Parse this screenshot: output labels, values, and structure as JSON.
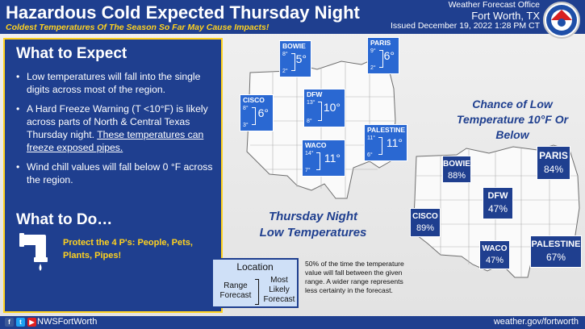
{
  "header": {
    "title": "Hazardous Cold Expected Thursday Night",
    "subtitle": "Coldest Temperatures Of The Season So Far May Cause Impacts!",
    "office_line1": "Weather Forecast Office",
    "office_line2": "Fort Worth, TX",
    "issued": "Issued December 19, 2022 1:28 PM CT"
  },
  "expect": {
    "heading": "What to Expect",
    "bullet1": "Low temperatures will fall into the single digits across most of the region.",
    "bullet2_text": "A Hard Freeze Warning (T <10°F) is likely across parts of North & Central Texas Thursday night.",
    "bullet2_underlined": "These temperatures can freeze exposed pipes.",
    "bullet3": "Wind chill values will fall below 0 °F across the region."
  },
  "todo": {
    "heading": "What to Do…",
    "protect": "Protect the 4 P's: People, Pets, Plants, Pipes!"
  },
  "low_temps": {
    "caption": "Thursday Night Low Temperatures",
    "sites": [
      {
        "name": "BOWIE",
        "high": "8°",
        "low": "2°",
        "value": "5°"
      },
      {
        "name": "PARIS",
        "high": "9°",
        "low": "2°",
        "value": "6°"
      },
      {
        "name": "CISCO",
        "high": "8°",
        "low": "3°",
        "value": "6°"
      },
      {
        "name": "DFW",
        "high": "13°",
        "low": "8°",
        "value": "10°"
      },
      {
        "name": "PALESTINE",
        "high": "11°",
        "low": "6°",
        "value": "11°"
      },
      {
        "name": "WACO",
        "high": "14°",
        "low": "7°",
        "value": "11°"
      }
    ]
  },
  "chance": {
    "caption": "Chance of Low Temperature 10°F Or Below",
    "sites": [
      {
        "name": "BOWIE",
        "value": "88%"
      },
      {
        "name": "PARIS",
        "value": "84%"
      },
      {
        "name": "DFW",
        "value": "47%"
      },
      {
        "name": "CISCO",
        "value": "89%"
      },
      {
        "name": "WACO",
        "value": "47%"
      },
      {
        "name": "PALESTINE",
        "value": "67%"
      }
    ]
  },
  "legend": {
    "title": "Location",
    "range": "Range Forecast",
    "most_likely": "Most Likely Forecast",
    "note": "50% of the time the temperature value will fall between the given range. A wider range represents less certainty in the forecast."
  },
  "footer": {
    "handle": "NWSFortWorth",
    "website": "weather.gov/fortworth"
  },
  "colors": {
    "navy": "#1f3f8f",
    "box_blue": "#2a68d2",
    "accent_yellow": "#ffd21f"
  },
  "icons": [
    "facebook-icon",
    "twitter-icon",
    "youtube-icon",
    "nws-logo-icon",
    "pipe-icon"
  ]
}
